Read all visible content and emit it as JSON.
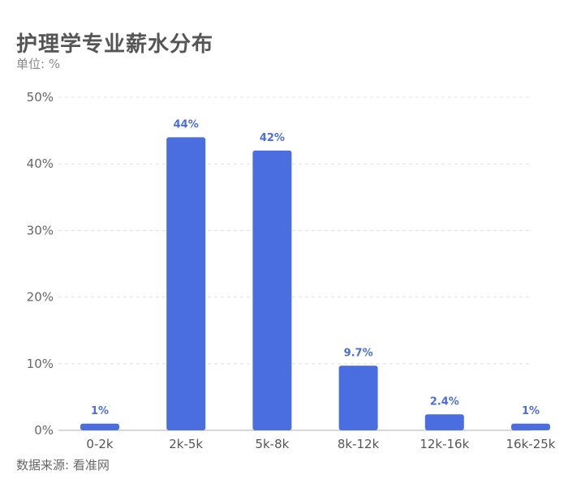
{
  "title": "护理学专业薪水分布",
  "unit": "单位: %",
  "source": "数据来源: 看准网",
  "chart_data": {
    "type": "bar",
    "title": "护理学专业薪水分布",
    "xlabel": "",
    "ylabel": "",
    "categories": [
      "0-2k",
      "2k-5k",
      "5k-8k",
      "8k-12k",
      "12k-16k",
      "16k-25k"
    ],
    "values": [
      1,
      44,
      42,
      9.7,
      2.4,
      1
    ],
    "value_labels": [
      "1%",
      "44%",
      "42%",
      "9.7%",
      "2.4%",
      "1%"
    ],
    "ylim": [
      0,
      50
    ],
    "yticks": [
      0,
      10,
      20,
      30,
      40,
      50
    ],
    "ytick_labels": [
      "0%",
      "10%",
      "20%",
      "30%",
      "40%",
      "50%"
    ],
    "grid": true,
    "legend": "none",
    "bar_color": "#4a6ee0"
  }
}
